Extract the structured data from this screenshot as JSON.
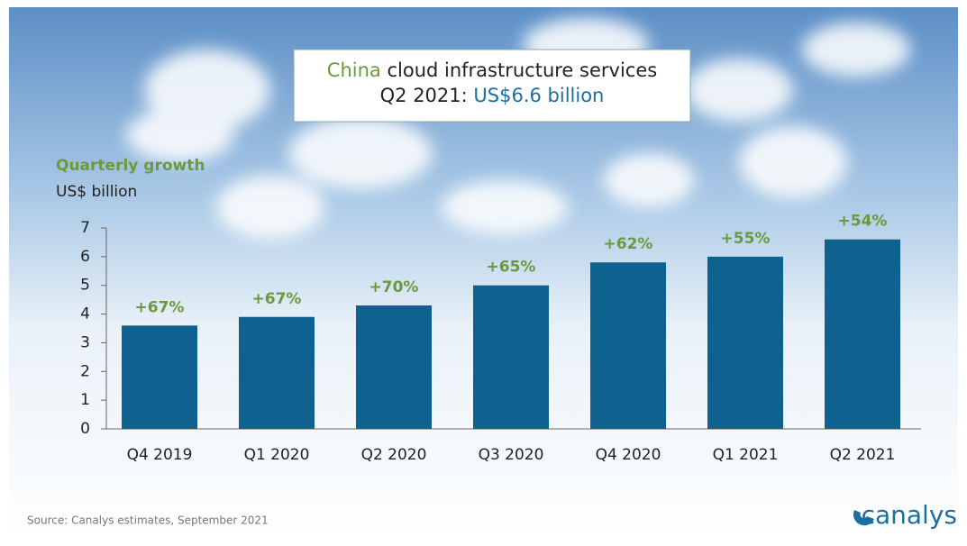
{
  "chart_data": {
    "type": "bar",
    "title": [
      "China",
      "cloud infrastructure services"
    ],
    "subtitle": [
      "Q2 2021:",
      "US$6.6 billion"
    ],
    "y_label": [
      "Quarterly growth",
      "US$ billion"
    ],
    "categories": [
      "Q4 2019",
      "Q1 2020",
      "Q2 2020",
      "Q3 2020",
      "Q4 2020",
      "Q1 2021",
      "Q2 2021"
    ],
    "values": [
      3.6,
      3.9,
      4.3,
      5.0,
      5.8,
      6.0,
      6.6
    ],
    "color": "#0f6190",
    "growth": [
      67,
      67,
      70,
      65,
      62,
      55,
      54
    ],
    "growth_labels": [
      "+67%",
      "+67%",
      "+70%",
      "+65%",
      "+62%",
      "+55%",
      "+54%"
    ],
    "growth_color": "#6b9a3e",
    "ylim": [
      0,
      7
    ],
    "yticks": [
      0,
      1,
      2,
      3,
      4,
      5,
      6,
      7
    ],
    "grid": false,
    "source": "Source: Canalys estimates, September 2021",
    "logo": "canalys"
  }
}
